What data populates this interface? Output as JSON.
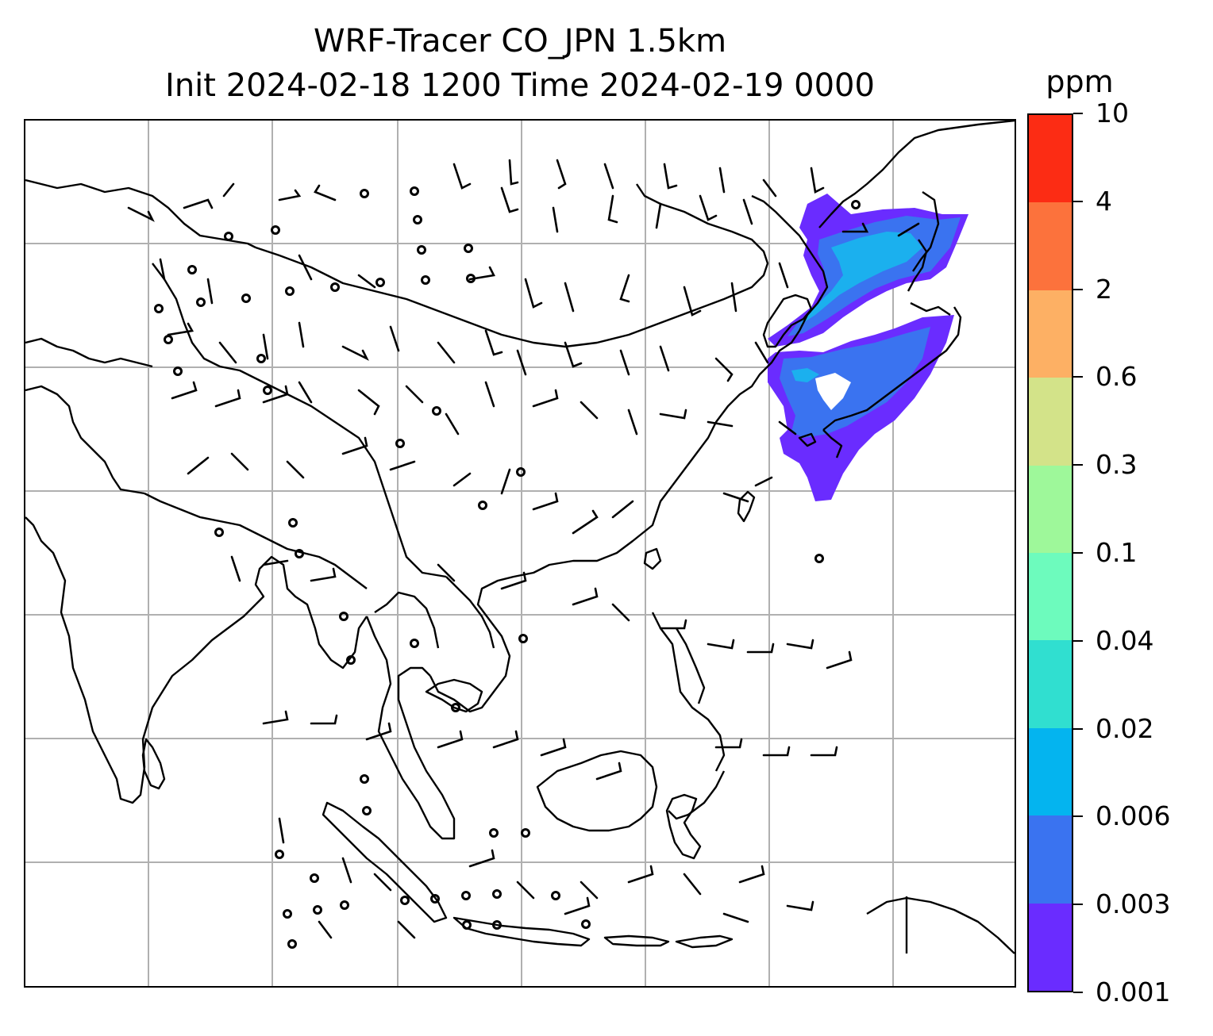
{
  "title": {
    "line1": "WRF-Tracer CO_JPN 1.5km",
    "line2": "Init 2024-02-18 1200 Time 2024-02-19 0000"
  },
  "map": {
    "description_region": "East and Southeast Asia",
    "plume_colors": [
      "#6a2cff",
      "#3a73f0",
      "#1bb0ee"
    ],
    "gridline_color": "#b0b0b0",
    "coastline_color": "#000000"
  },
  "colorbar": {
    "unit": "ppm",
    "ticks": [
      "0.001",
      "0.003",
      "0.006",
      "0.02",
      "0.04",
      "0.1",
      "0.3",
      "0.6",
      "2",
      "4",
      "10"
    ],
    "colors": [
      "#6a2cff",
      "#3a73f0",
      "#04b4ef",
      "#30dfd0",
      "#6dfbbd",
      "#9ef89a",
      "#d3e389",
      "#fdb064",
      "#fc723c",
      "#fc2c14"
    ]
  }
}
